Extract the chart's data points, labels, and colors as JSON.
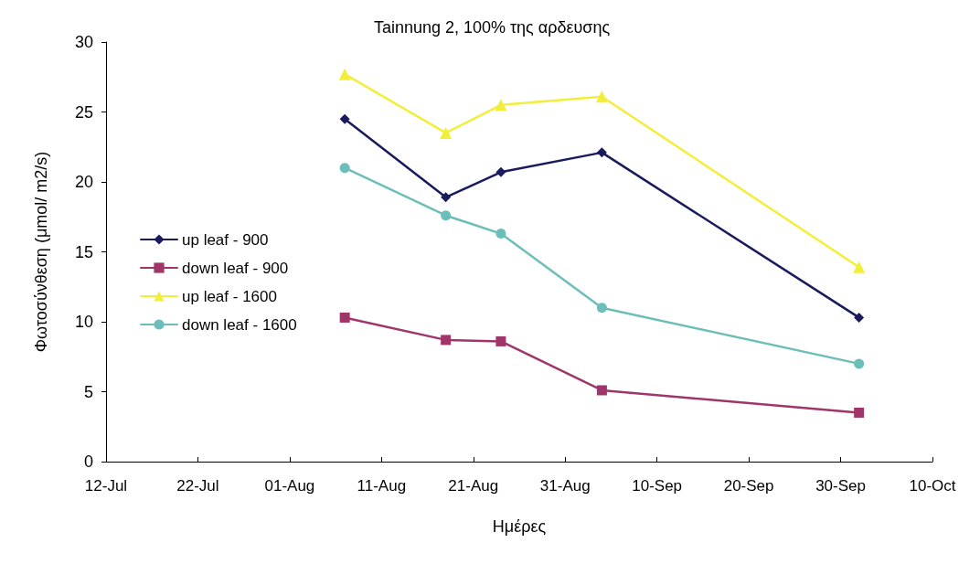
{
  "chart_data": {
    "type": "line",
    "title": "Tainnung 2, 100% της αρδευσης",
    "xlabel": "Ημέρες",
    "ylabel": "Φωτοσύνθεση (μmol/ m2/s)",
    "x": [
      "--08-07",
      "--08-18",
      "--08-24",
      "--09-04",
      "--10-02"
    ],
    "series": [
      {
        "name": "up leaf - 900",
        "color": "#1a1a5e",
        "marker": "diamond",
        "values": [
          24.5,
          18.9,
          20.7,
          22.1,
          10.3
        ]
      },
      {
        "name": "down leaf - 900",
        "color": "#a0356a",
        "marker": "square",
        "values": [
          10.3,
          8.7,
          8.6,
          5.1,
          3.5
        ]
      },
      {
        "name": "up leaf - 1600",
        "color": "#f2ef3a",
        "marker": "triangle",
        "values": [
          27.7,
          23.5,
          25.5,
          26.1,
          13.9
        ]
      },
      {
        "name": "down leaf - 1600",
        "color": "#6cbfb8",
        "marker": "circle",
        "values": [
          21.0,
          17.6,
          16.3,
          11.0,
          7.0
        ]
      }
    ],
    "xlim": [
      "--07-12",
      "--10-10"
    ],
    "xticks": [
      {
        "value": "--07-12",
        "label": "12-Jul"
      },
      {
        "value": "--07-22",
        "label": "22-Jul"
      },
      {
        "value": "--08-01",
        "label": "01-Aug"
      },
      {
        "value": "--08-11",
        "label": "11-Aug"
      },
      {
        "value": "--08-21",
        "label": "21-Aug"
      },
      {
        "value": "--08-31",
        "label": "31-Aug"
      },
      {
        "value": "--09-10",
        "label": "10-Sep"
      },
      {
        "value": "--09-20",
        "label": "20-Sep"
      },
      {
        "value": "--09-30",
        "label": "30-Sep"
      },
      {
        "value": "--10-10",
        "label": "10-Oct"
      }
    ],
    "ylim": [
      0,
      30
    ],
    "yticks": [
      0,
      5,
      10,
      15,
      20,
      25,
      30
    ],
    "grid": false,
    "legend": "left",
    "line_style": "solid"
  }
}
